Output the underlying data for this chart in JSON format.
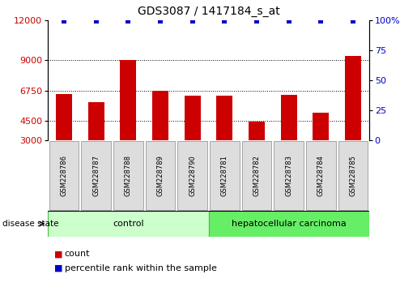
{
  "title": "GDS3087 / 1417184_s_at",
  "samples": [
    "GSM228786",
    "GSM228787",
    "GSM228788",
    "GSM228789",
    "GSM228790",
    "GSM228781",
    "GSM228782",
    "GSM228783",
    "GSM228784",
    "GSM228785"
  ],
  "counts": [
    6450,
    5900,
    9050,
    6750,
    6350,
    6350,
    4450,
    6400,
    5100,
    9300
  ],
  "percentile_values": [
    99,
    99,
    99,
    99,
    99,
    99,
    99,
    99,
    99,
    99
  ],
  "ylim_left": [
    3000,
    12000
  ],
  "ylim_right": [
    0,
    100
  ],
  "yticks_left": [
    3000,
    4500,
    6750,
    9000,
    12000
  ],
  "yticks_right": [
    0,
    25,
    50,
    75,
    100
  ],
  "ytick_labels_right": [
    "0",
    "25",
    "50",
    "75",
    "100%"
  ],
  "bar_color": "#cc0000",
  "scatter_color": "#0000cc",
  "control_label": "control",
  "carcinoma_label": "hepatocellular carcinoma",
  "disease_state_label": "disease state",
  "legend_count_label": "count",
  "legend_percentile_label": "percentile rank within the sample",
  "control_color": "#ccffcc",
  "carcinoma_color": "#66ee66",
  "tick_label_color_left": "#cc0000",
  "tick_label_color_right": "#0000cc",
  "bar_bottom": 3000,
  "bar_width": 0.5,
  "label_box_color": "#dddddd",
  "label_box_edge": "#999999"
}
